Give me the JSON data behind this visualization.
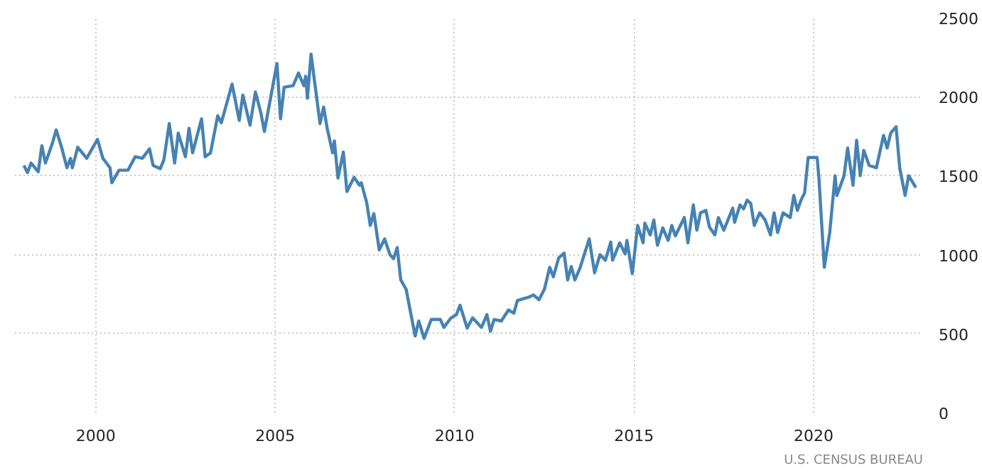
{
  "chart_data": {
    "type": "line",
    "xlim": [
      1997.75,
      2023.05
    ],
    "ylim": [
      0,
      2500
    ],
    "xticks": [
      2000,
      2005,
      2010,
      2015,
      2020
    ],
    "yticks": [
      0,
      500,
      1000,
      1500,
      2000,
      2500
    ],
    "grid": true,
    "marker": "none",
    "line_style": "solid",
    "annotations": [
      "U.S. CENSUS BUREAU"
    ],
    "x": [
      1998.0,
      1998.1,
      1998.2,
      1998.4,
      1998.5,
      1998.6,
      1998.8,
      1998.9,
      1999.05,
      1999.2,
      1999.3,
      1999.35,
      1999.5,
      1999.75,
      2000.05,
      2000.2,
      2000.4,
      2000.45,
      2000.65,
      2000.9,
      2001.1,
      2001.3,
      2001.5,
      2001.6,
      2001.8,
      2001.9,
      2002.05,
      2002.2,
      2002.3,
      2002.5,
      2002.6,
      2002.7,
      2002.95,
      2003.05,
      2003.2,
      2003.4,
      2003.5,
      2003.8,
      2004.0,
      2004.1,
      2004.3,
      2004.45,
      2004.6,
      2004.7,
      2005.05,
      2005.15,
      2005.25,
      2005.5,
      2005.65,
      2005.8,
      2005.85,
      2005.9,
      2006.0,
      2006.25,
      2006.35,
      2006.45,
      2006.6,
      2006.65,
      2006.75,
      2006.9,
      2007.0,
      2007.2,
      2007.35,
      2007.4,
      2007.55,
      2007.65,
      2007.75,
      2007.9,
      2008.05,
      2008.2,
      2008.3,
      2008.4,
      2008.5,
      2008.65,
      2008.9,
      2009.0,
      2009.15,
      2009.35,
      2009.6,
      2009.7,
      2009.9,
      2010.05,
      2010.15,
      2010.35,
      2010.5,
      2010.75,
      2010.9,
      2011.0,
      2011.1,
      2011.3,
      2011.5,
      2011.65,
      2011.75,
      2012.05,
      2012.2,
      2012.35,
      2012.5,
      2012.65,
      2012.75,
      2012.9,
      2013.05,
      2013.15,
      2013.25,
      2013.35,
      2013.5,
      2013.75,
      2013.9,
      2014.05,
      2014.2,
      2014.35,
      2014.4,
      2014.6,
      2014.75,
      2014.8,
      2014.95,
      2015.1,
      2015.25,
      2015.3,
      2015.45,
      2015.55,
      2015.65,
      2015.8,
      2015.95,
      2016.05,
      2016.15,
      2016.4,
      2016.5,
      2016.65,
      2016.75,
      2016.85,
      2017.0,
      2017.1,
      2017.25,
      2017.35,
      2017.5,
      2017.75,
      2017.8,
      2017.95,
      2018.05,
      2018.15,
      2018.25,
      2018.35,
      2018.5,
      2018.65,
      2018.8,
      2018.9,
      2019.0,
      2019.15,
      2019.35,
      2019.45,
      2019.55,
      2019.65,
      2019.75,
      2019.85,
      2020.1,
      2020.15,
      2020.3,
      2020.45,
      2020.6,
      2020.65,
      2020.85,
      2020.95,
      2021.1,
      2021.2,
      2021.3,
      2021.4,
      2021.55,
      2021.75,
      2021.95,
      2022.05,
      2022.15,
      2022.3,
      2022.4,
      2022.55,
      2022.65,
      2022.85
    ],
    "series": [
      {
        "color": "#4682b4",
        "values": [
          1565,
          1520,
          1580,
          1525,
          1690,
          1580,
          1710,
          1790,
          1680,
          1550,
          1610,
          1550,
          1680,
          1610,
          1730,
          1610,
          1550,
          1455,
          1535,
          1535,
          1620,
          1610,
          1670,
          1565,
          1545,
          1600,
          1830,
          1580,
          1770,
          1620,
          1800,
          1645,
          1860,
          1620,
          1645,
          1880,
          1835,
          2080,
          1850,
          2010,
          1820,
          2030,
          1900,
          1780,
          2210,
          1860,
          2060,
          2070,
          2150,
          2070,
          2130,
          1990,
          2270,
          1830,
          1935,
          1800,
          1645,
          1720,
          1485,
          1650,
          1400,
          1490,
          1440,
          1455,
          1330,
          1185,
          1260,
          1030,
          1100,
          1000,
          975,
          1045,
          840,
          780,
          485,
          580,
          470,
          590,
          590,
          540,
          600,
          620,
          680,
          535,
          600,
          540,
          620,
          515,
          590,
          580,
          650,
          630,
          710,
          730,
          745,
          715,
          780,
          920,
          860,
          980,
          1010,
          840,
          925,
          840,
          920,
          1100,
          885,
          1000,
          965,
          1080,
          965,
          1075,
          1005,
          1090,
          880,
          1185,
          1075,
          1200,
          1125,
          1220,
          1060,
          1170,
          1090,
          1185,
          1120,
          1235,
          1075,
          1315,
          1155,
          1265,
          1280,
          1175,
          1125,
          1235,
          1155,
          1295,
          1205,
          1315,
          1290,
          1345,
          1325,
          1185,
          1265,
          1220,
          1125,
          1265,
          1140,
          1265,
          1235,
          1375,
          1280,
          1345,
          1390,
          1615,
          1615,
          1485,
          920,
          1140,
          1500,
          1375,
          1500,
          1675,
          1440,
          1725,
          1500,
          1660,
          1565,
          1550,
          1755,
          1675,
          1770,
          1810,
          1550,
          1375,
          1500,
          1425
        ]
      }
    ]
  }
}
